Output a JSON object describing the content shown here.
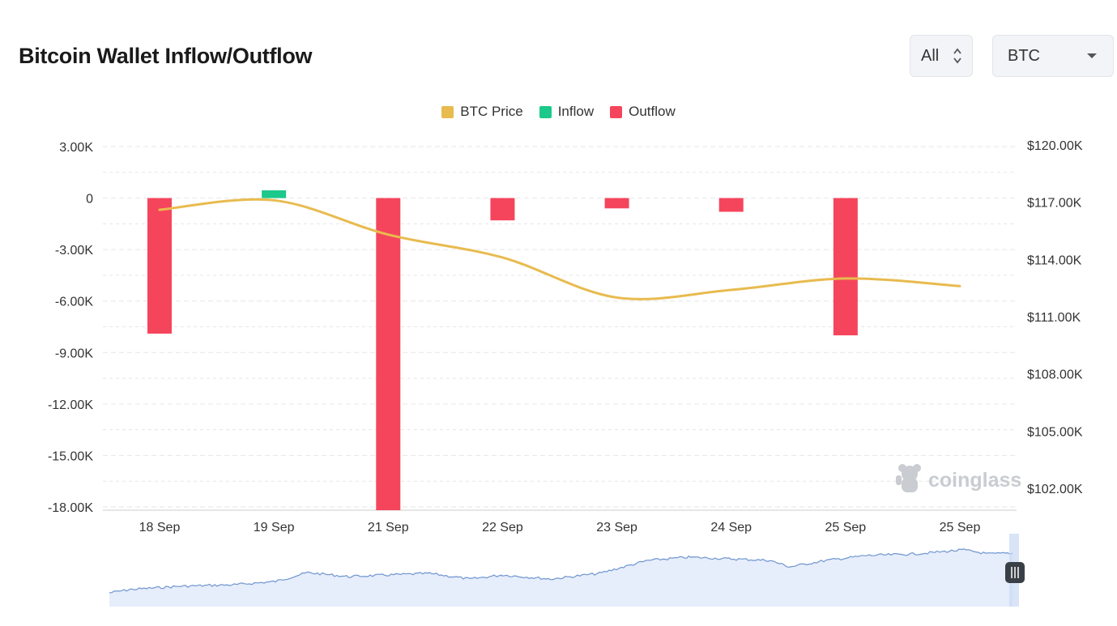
{
  "header": {
    "title": "Bitcoin Wallet Inflow/Outflow",
    "range_select": "All",
    "asset_select": "BTC"
  },
  "watermark": "coinglass",
  "colors": {
    "price": "#e8bb4f",
    "inflow": "#1cc98a",
    "outflow": "#f5455c",
    "grid": "#e6e6e6",
    "navigator_fill": "#e6edfb",
    "navigator_line": "#6f95cf"
  },
  "chart_data": {
    "type": "bar",
    "legend": {
      "position": "top-center",
      "items": [
        {
          "name": "BTC Price",
          "color": "#e8bb4f"
        },
        {
          "name": "Inflow",
          "color": "#1cc98a"
        },
        {
          "name": "Outflow",
          "color": "#f5455c"
        }
      ]
    },
    "categories": [
      "18 Sep",
      "19 Sep",
      "21 Sep",
      "22 Sep",
      "23 Sep",
      "24 Sep",
      "25 Sep",
      "25 Sep"
    ],
    "series": [
      {
        "name": "Inflow",
        "values": [
          0,
          450,
          0,
          0,
          0,
          0,
          0,
          0
        ]
      },
      {
        "name": "Outflow",
        "values": [
          -7900,
          0,
          -18200,
          -1300,
          -600,
          -800,
          -8000,
          0
        ]
      },
      {
        "name": "BTC Price",
        "values": [
          116600,
          117100,
          115300,
          114100,
          112000,
          112400,
          113000,
          112600
        ]
      }
    ],
    "left_axis": {
      "ticks": [
        3000,
        0,
        -3000,
        -6000,
        -9000,
        -12000,
        -15000,
        -18000
      ],
      "tick_labels": [
        "3.00K",
        "0",
        "-3.00K",
        "-6.00K",
        "-9.00K",
        "-12.00K",
        "-15.00K",
        "-18.00K"
      ],
      "ylim": [
        -18200,
        3000
      ]
    },
    "right_axis": {
      "ticks": [
        120000,
        117000,
        114000,
        111000,
        108000,
        105000,
        102000
      ],
      "tick_labels": [
        "$120.00K",
        "$117.00K",
        "$114.00K",
        "$111.00K",
        "$108.00K",
        "$105.00K",
        "$102.00K"
      ],
      "ylim": [
        101000,
        120500
      ]
    },
    "grid": true
  }
}
